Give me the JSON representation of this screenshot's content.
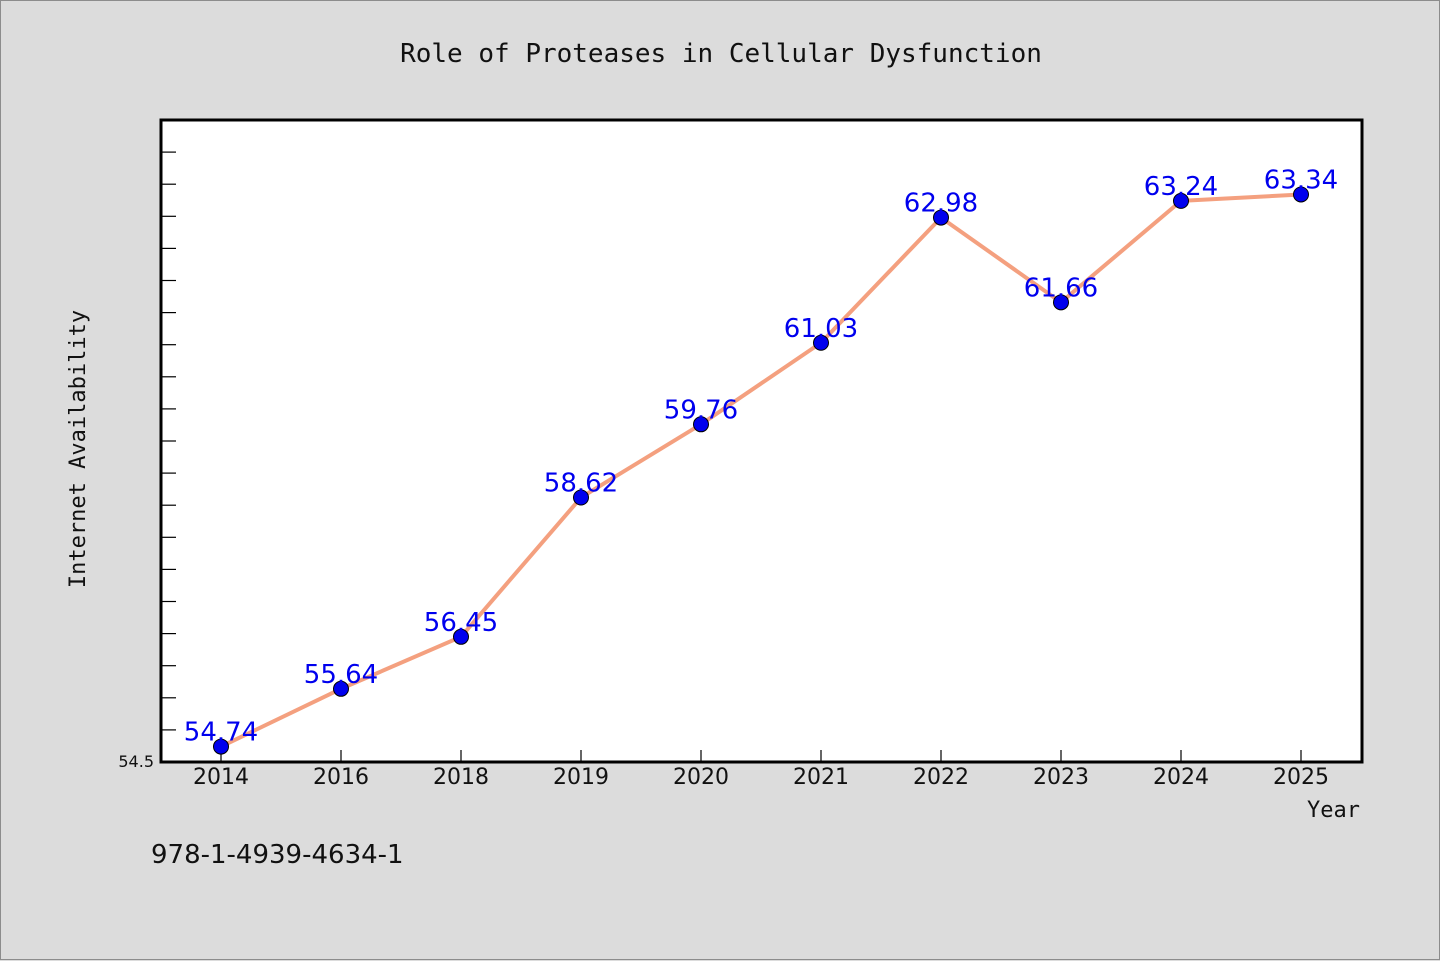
{
  "chart_data": {
    "type": "line",
    "title": "Role of Proteases in Cellular Dysfunction",
    "xlabel": "Year",
    "ylabel": "Internet Availability",
    "categories": [
      "2014",
      "2016",
      "2018",
      "2019",
      "2020",
      "2021",
      "2022",
      "2023",
      "2024",
      "2025"
    ],
    "values": [
      54.74,
      55.64,
      56.45,
      58.62,
      59.76,
      61.03,
      62.98,
      61.66,
      63.24,
      63.34
    ],
    "data_labels": [
      "54.74",
      "55.64",
      "56.45",
      "58.62",
      "59.76",
      "61.03",
      "62.98",
      "61.66",
      "63.24",
      "63.34"
    ],
    "y_tick_labels": [
      "54.5"
    ],
    "ylim": [
      54.5,
      64.5
    ],
    "grid": false,
    "line_color": "#f4a07f",
    "marker_color": "#0000ee",
    "label_color": "#0000ee"
  },
  "footer": {
    "isbn": "978-1-4939-4634-1"
  }
}
